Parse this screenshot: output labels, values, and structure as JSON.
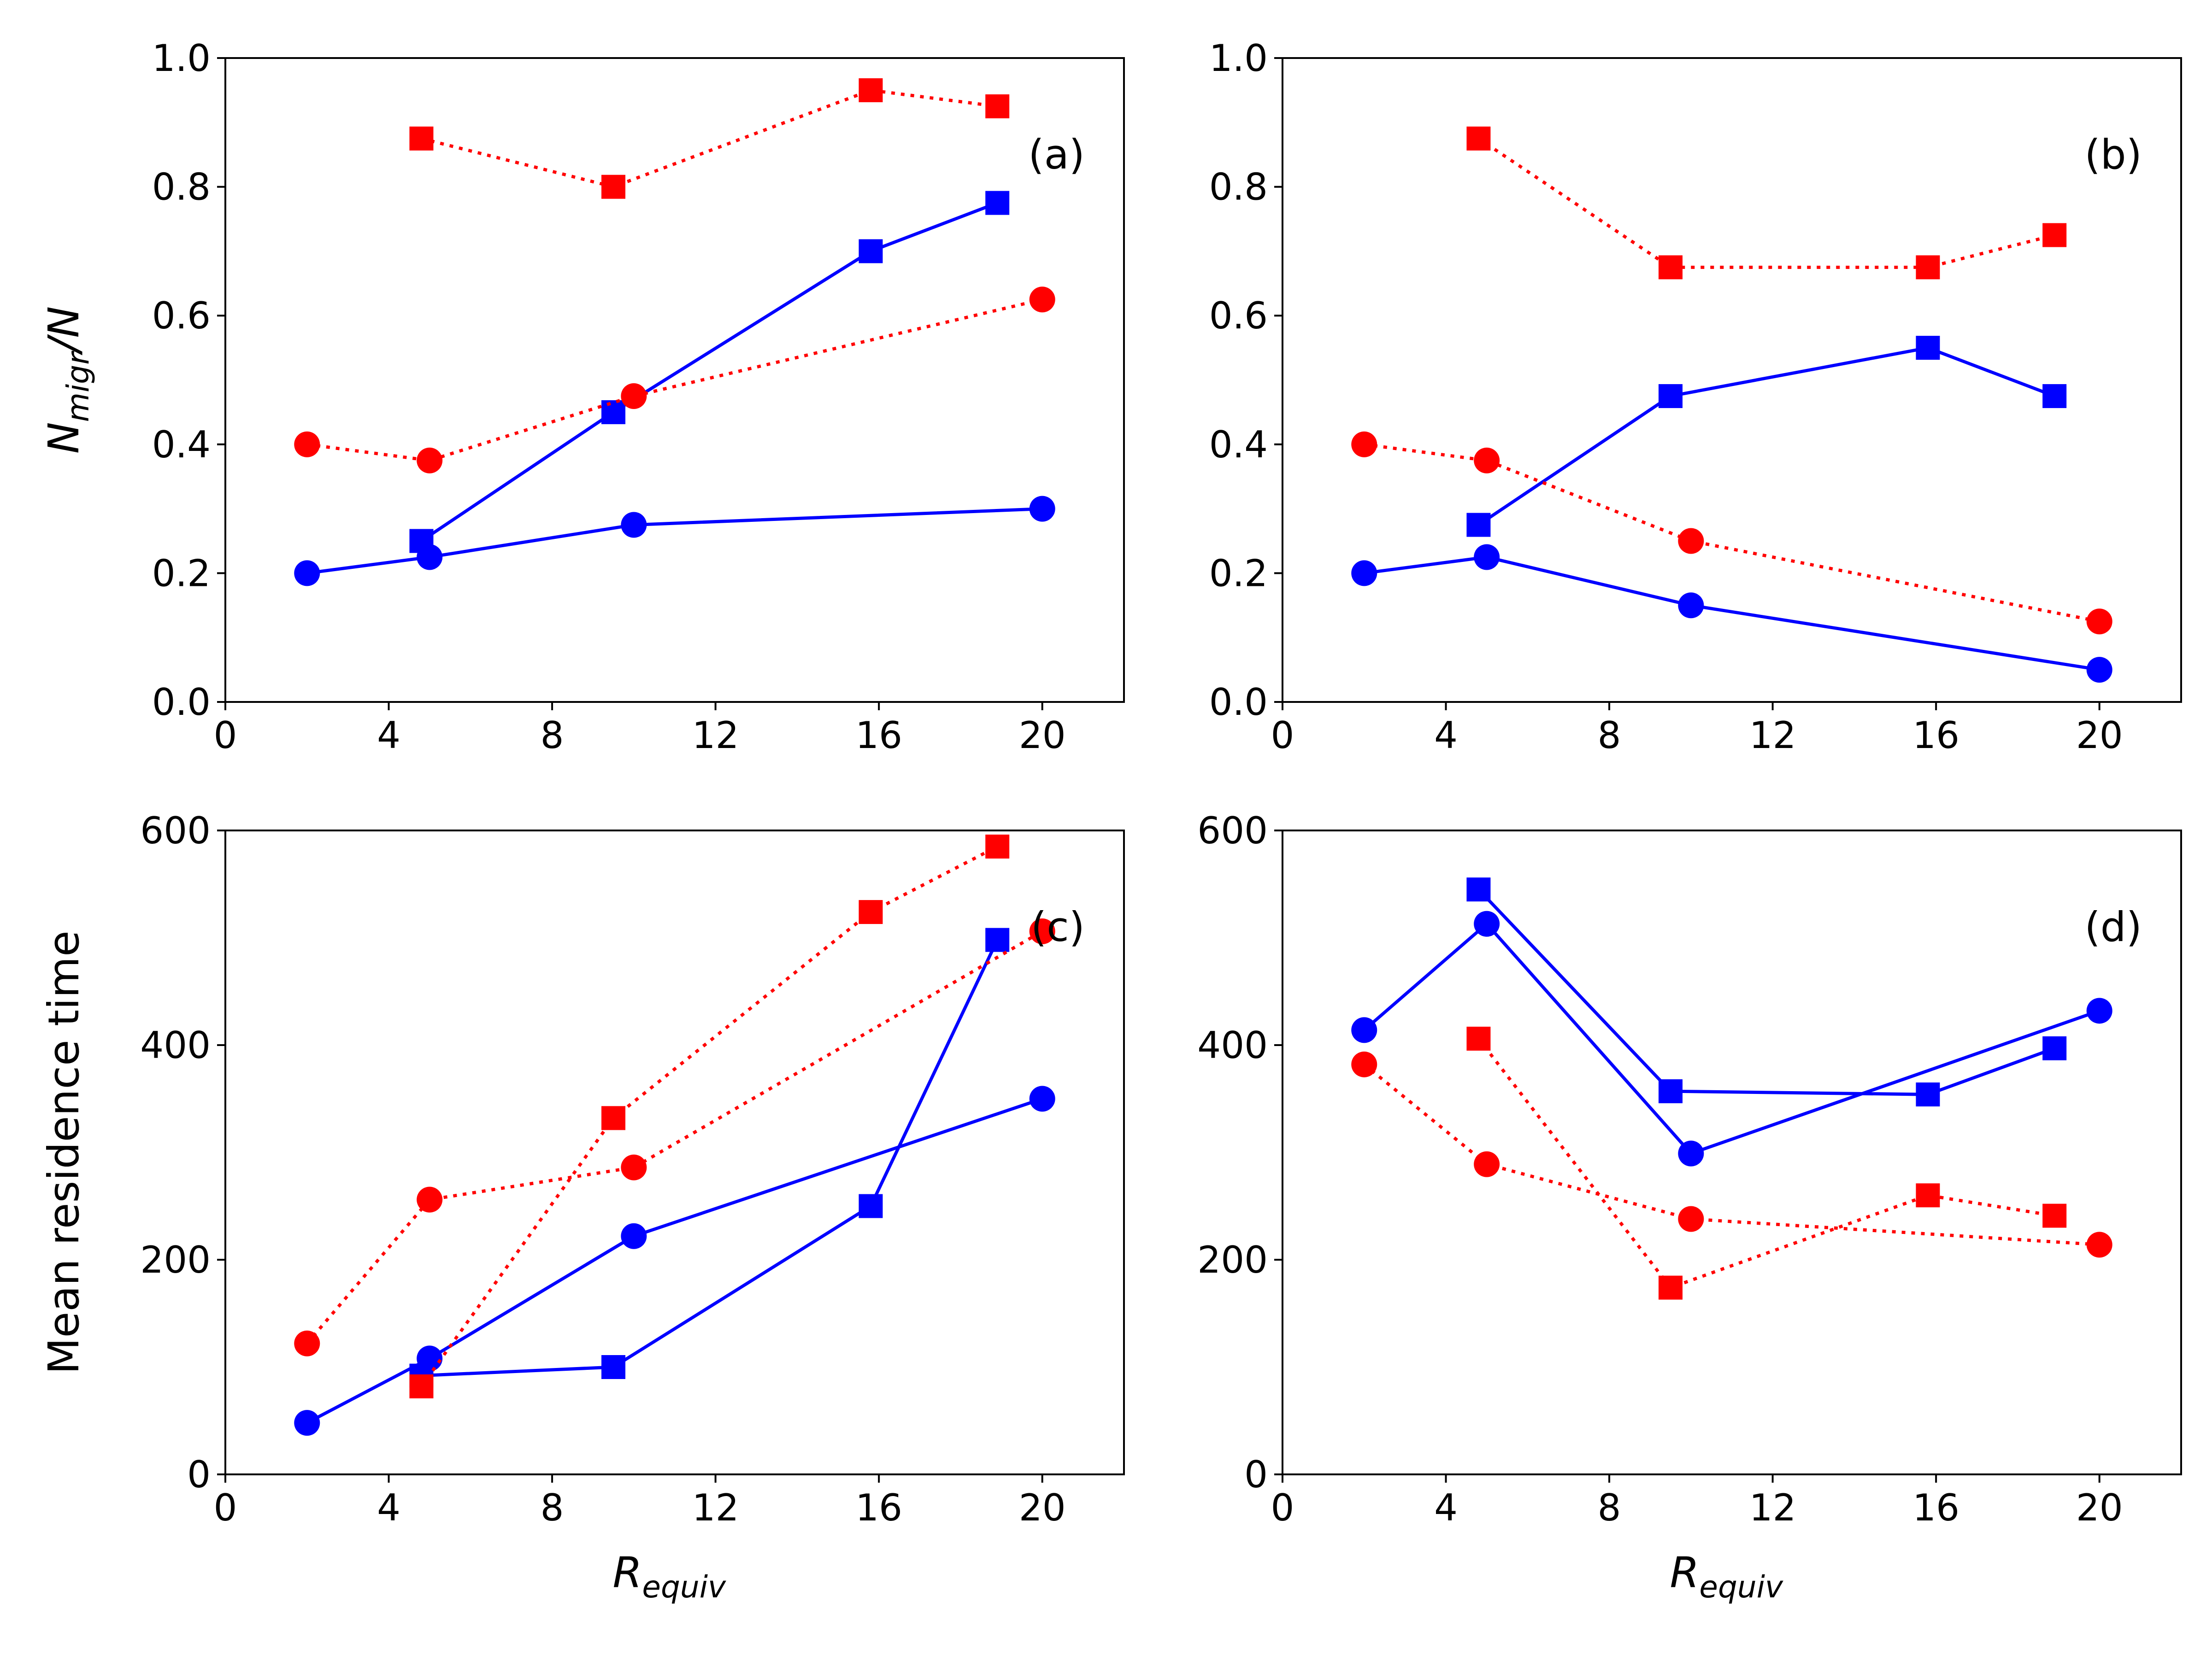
{
  "colors": {
    "blue": "#0000ff",
    "red": "#ff0000",
    "axes": "#000000"
  },
  "marker_legend": {
    "square": "square-marker",
    "circle": "circle-marker"
  },
  "chart_data": [
    {
      "panel": "(a)",
      "type": "line",
      "xlabel_html": "",
      "ylabel": {
        "base": "N",
        "sub": "migr",
        "suffix": "/N"
      },
      "xlim": [
        0,
        22
      ],
      "ylim": [
        0,
        1.0
      ],
      "xticks": [
        "0",
        "4",
        "8",
        "12",
        "16",
        "20"
      ],
      "yticks": [
        "0.0",
        "0.2",
        "0.4",
        "0.6",
        "0.8",
        "1.0"
      ],
      "grid": false,
      "series": [
        {
          "color": "blue",
          "style": "solid",
          "marker": "square",
          "x": [
            4.8,
            9.5,
            15.8,
            18.9
          ],
          "y": [
            0.25,
            0.45,
            0.7,
            0.775
          ]
        },
        {
          "color": "blue",
          "style": "solid",
          "marker": "circle",
          "x": [
            2,
            5,
            10,
            20
          ],
          "y": [
            0.2,
            0.225,
            0.275,
            0.3
          ]
        },
        {
          "color": "red",
          "style": "dotted",
          "marker": "square",
          "x": [
            4.8,
            9.5,
            15.8,
            18.9
          ],
          "y": [
            0.875,
            0.8,
            0.95,
            0.925
          ]
        },
        {
          "color": "red",
          "style": "dotted",
          "marker": "circle",
          "x": [
            2,
            5,
            10,
            20
          ],
          "y": [
            0.4,
            0.375,
            0.475,
            0.625
          ]
        }
      ]
    },
    {
      "panel": "(b)",
      "type": "line",
      "xlim": [
        0,
        22
      ],
      "ylim": [
        0,
        1.0
      ],
      "xticks": [
        "0",
        "4",
        "8",
        "12",
        "16",
        "20"
      ],
      "yticks": [
        "0.0",
        "0.2",
        "0.4",
        "0.6",
        "0.8",
        "1.0"
      ],
      "grid": false,
      "series": [
        {
          "color": "blue",
          "style": "solid",
          "marker": "square",
          "x": [
            4.8,
            9.5,
            15.8,
            18.9
          ],
          "y": [
            0.275,
            0.475,
            0.55,
            0.475
          ]
        },
        {
          "color": "blue",
          "style": "solid",
          "marker": "circle",
          "x": [
            2,
            5,
            10,
            20
          ],
          "y": [
            0.2,
            0.225,
            0.15,
            0.05
          ]
        },
        {
          "color": "red",
          "style": "dotted",
          "marker": "square",
          "x": [
            4.8,
            9.5,
            15.8,
            18.9
          ],
          "y": [
            0.875,
            0.675,
            0.675,
            0.725
          ]
        },
        {
          "color": "red",
          "style": "dotted",
          "marker": "circle",
          "x": [
            2,
            5,
            10,
            20
          ],
          "y": [
            0.4,
            0.375,
            0.25,
            0.125
          ]
        }
      ]
    },
    {
      "panel": "(c)",
      "type": "line",
      "xlabel": {
        "base": "R",
        "sub": "equiv"
      },
      "ylabel_text": "Mean residence time",
      "xlim": [
        0,
        22
      ],
      "ylim": [
        0,
        600
      ],
      "xticks": [
        "0",
        "4",
        "8",
        "12",
        "16",
        "20"
      ],
      "yticks": [
        "0",
        "200",
        "400",
        "600"
      ],
      "grid": false,
      "series": [
        {
          "color": "blue",
          "style": "solid",
          "marker": "square",
          "x": [
            4.8,
            9.5,
            15.8,
            18.9
          ],
          "y": [
            92,
            100,
            250,
            498
          ]
        },
        {
          "color": "blue",
          "style": "solid",
          "marker": "circle",
          "x": [
            2,
            5,
            10,
            20
          ],
          "y": [
            48,
            108,
            222,
            350
          ]
        },
        {
          "color": "red",
          "style": "dotted",
          "marker": "square",
          "x": [
            4.8,
            9.5,
            15.8,
            18.9
          ],
          "y": [
            82,
            332,
            524,
            585
          ]
        },
        {
          "color": "red",
          "style": "dotted",
          "marker": "circle",
          "x": [
            2,
            5,
            10,
            20
          ],
          "y": [
            122,
            256,
            286,
            506
          ]
        }
      ]
    },
    {
      "panel": "(d)",
      "type": "line",
      "xlabel": {
        "base": "R",
        "sub": "equiv"
      },
      "xlim": [
        0,
        22
      ],
      "ylim": [
        0,
        600
      ],
      "xticks": [
        "0",
        "4",
        "8",
        "12",
        "16",
        "20"
      ],
      "yticks": [
        "0",
        "200",
        "400",
        "600"
      ],
      "grid": false,
      "series": [
        {
          "color": "blue",
          "style": "solid",
          "marker": "square",
          "x": [
            4.8,
            9.5,
            15.8,
            18.9
          ],
          "y": [
            545,
            357,
            354,
            397
          ]
        },
        {
          "color": "blue",
          "style": "solid",
          "marker": "circle",
          "x": [
            2,
            5,
            10,
            20
          ],
          "y": [
            414,
            513,
            299,
            432
          ]
        },
        {
          "color": "red",
          "style": "dotted",
          "marker": "square",
          "x": [
            4.8,
            9.5,
            15.8,
            18.9
          ],
          "y": [
            406,
            174,
            260,
            241
          ]
        },
        {
          "color": "red",
          "style": "dotted",
          "marker": "circle",
          "x": [
            2,
            5,
            10,
            20
          ],
          "y": [
            382,
            289,
            238,
            214
          ]
        }
      ]
    }
  ]
}
